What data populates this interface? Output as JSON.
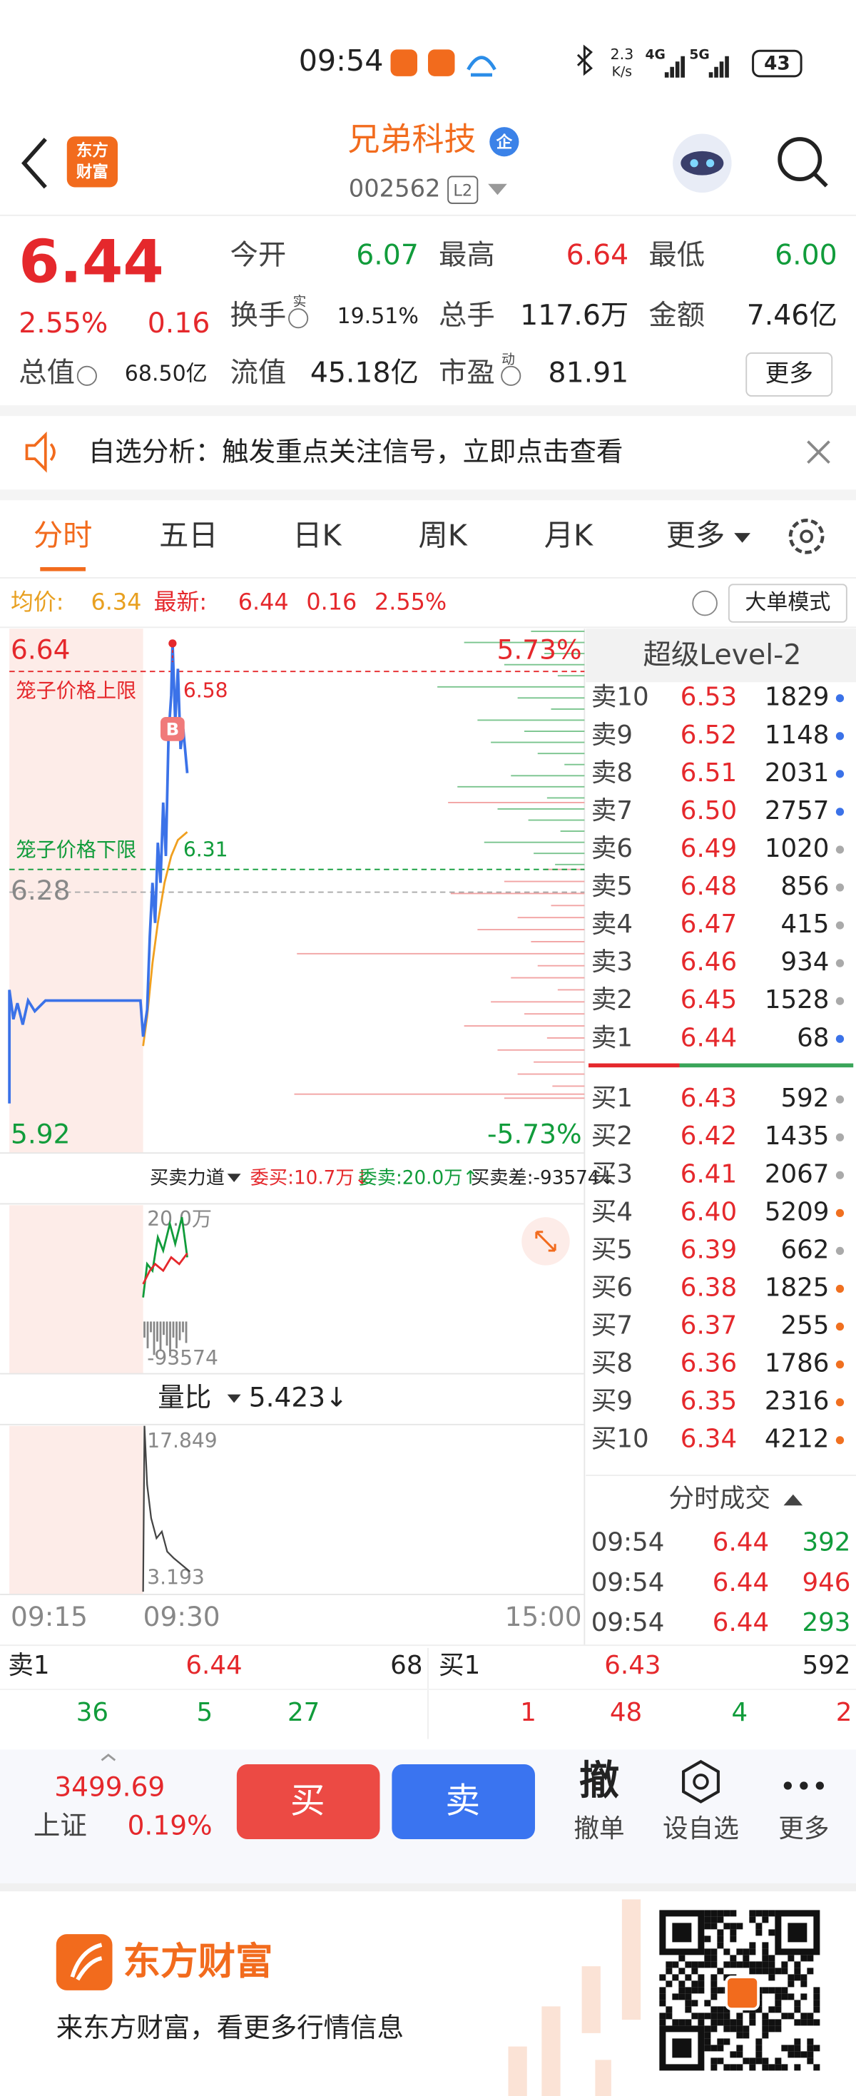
{
  "status_bar": {
    "time": "09:54",
    "speed": "2.3",
    "speed_unit": "K/s",
    "net1": "4G",
    "net2": "5G",
    "battery": "43"
  },
  "header": {
    "logo": [
      "东方",
      "财富"
    ],
    "title": "兄弟科技",
    "badge": "企",
    "code": "002562",
    "level": "L2"
  },
  "quote": {
    "price": "6.44",
    "change_pct": "2.55%",
    "change": "0.16",
    "stats": [
      {
        "label": "今开",
        "value": "6.07"
      },
      {
        "label": "最高",
        "value": "6.64"
      },
      {
        "label": "最低",
        "value": "6.00"
      },
      {
        "label": "换手",
        "sup": "实",
        "value": "19.51%"
      },
      {
        "label": "总手",
        "value": "117.6万"
      },
      {
        "label": "金额",
        "value": "7.46亿"
      },
      {
        "label": "总值",
        "value": "68.50亿"
      },
      {
        "label": "流值",
        "value": "45.18亿"
      },
      {
        "label": "市盈",
        "sup": "动",
        "value": "81.91"
      }
    ],
    "more": "更多"
  },
  "notice": {
    "text": "自选分析：触发重点关注信号，立即点击查看"
  },
  "tabs": [
    "分时",
    "五日",
    "日K",
    "周K",
    "月K",
    "更多"
  ],
  "chart_info": {
    "avg_label": "均价:",
    "avg": "6.34",
    "latest_label": "最新:",
    "latest": "6.44",
    "change": "0.16",
    "change_pct": "2.55%",
    "mode": "大单模式"
  },
  "chart": {
    "high": "6.64",
    "mid": "6.28",
    "low": "5.92",
    "pct_high": "5.73%",
    "pct_low": "-5.73%",
    "upper_label": "笼子价格上限",
    "upper": "6.58",
    "lower_label": "笼子价格下限",
    "lower": "6.31",
    "marker": "B",
    "times": [
      "09:15",
      "09:30",
      "15:00"
    ]
  },
  "force": {
    "label": "买卖力道",
    "buy": "委买:10.7万↓",
    "sell": "委卖:20.0万↑",
    "diff": "买卖差:-93574↓",
    "top": "20.0万",
    "bottom": "-93574"
  },
  "volume_ratio": {
    "label": "量比",
    "value": "5.423↓",
    "top": "17.849",
    "bottom": "3.193"
  },
  "level2": {
    "title": "超级Level-2",
    "asks": [
      [
        "卖10",
        "6.53",
        "1829"
      ],
      [
        "卖9",
        "6.52",
        "1148"
      ],
      [
        "卖8",
        "6.51",
        "2031"
      ],
      [
        "卖7",
        "6.50",
        "2757"
      ],
      [
        "卖6",
        "6.49",
        "1020"
      ],
      [
        "卖5",
        "6.48",
        "856"
      ],
      [
        "卖4",
        "6.47",
        "415"
      ],
      [
        "卖3",
        "6.46",
        "934"
      ],
      [
        "卖2",
        "6.45",
        "1528"
      ],
      [
        "卖1",
        "6.44",
        "68"
      ]
    ],
    "bids": [
      [
        "买1",
        "6.43",
        "592"
      ],
      [
        "买2",
        "6.42",
        "1435"
      ],
      [
        "买3",
        "6.41",
        "2067"
      ],
      [
        "买4",
        "6.40",
        "5209"
      ],
      [
        "买5",
        "6.39",
        "662"
      ],
      [
        "买6",
        "6.38",
        "1825"
      ],
      [
        "买7",
        "6.37",
        "255"
      ],
      [
        "买8",
        "6.36",
        "1786"
      ],
      [
        "买9",
        "6.35",
        "2316"
      ],
      [
        "买10",
        "6.34",
        "4212"
      ]
    ],
    "trades_title": "分时成交",
    "trades": [
      [
        "09:54",
        "6.44",
        "392"
      ],
      [
        "09:54",
        "6.44",
        "946"
      ],
      [
        "09:54",
        "6.44",
        "293"
      ]
    ]
  },
  "best": {
    "ask_label": "卖1",
    "ask_price": "6.44",
    "ask_qty": "68",
    "bid_label": "买1",
    "bid_price": "6.43",
    "bid_qty": "592",
    "ask_queue": [
      "36",
      "5",
      "27"
    ],
    "bid_queue": [
      "1",
      "48",
      "4",
      "2"
    ]
  },
  "bottom_bar": {
    "index_value": "3499.69",
    "index_name": "上证",
    "index_pct": "0.19%",
    "buy": "买",
    "sell": "卖",
    "cancel_icon": "撤",
    "cancel": "撤单",
    "watch": "设自选",
    "more": "更多"
  },
  "footer": {
    "brand": "东方财富",
    "slogan": "来东方财富，看更多行情信息"
  }
}
